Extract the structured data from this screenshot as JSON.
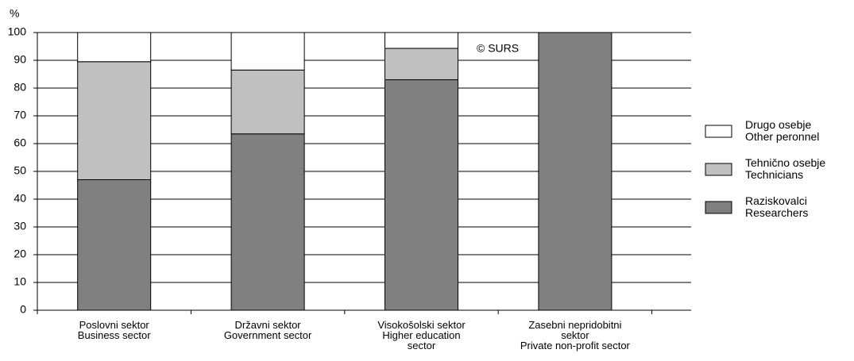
{
  "chart_data": {
    "type": "stacked_bar",
    "y_axis_label": "%",
    "annotation": "© SURS",
    "categories": [
      "Poslovni sektor\nBusiness sector",
      "Državni sektor\nGovernment sector",
      "Visokošolski sektor\nHigher education\nsector",
      "Zasebni nepridobitni\nsektor\nPrivate non-profit sector"
    ],
    "series": [
      {
        "name": "Raziskovalci\nResearchers",
        "color": "#808080",
        "values": [
          47,
          63.5,
          83,
          100
        ]
      },
      {
        "name": "Tehnično osebje\nTechnicians",
        "color": "#c0c0c0",
        "values": [
          42.5,
          23,
          11.3,
          0
        ]
      },
      {
        "name": "Drugo osebje\nOther peronnel",
        "color": "#ffffff",
        "values": [
          10.5,
          13.5,
          5.7,
          0
        ]
      }
    ],
    "ylim": [
      0,
      100
    ],
    "yticks": [
      0,
      10,
      20,
      30,
      40,
      50,
      60,
      70,
      80,
      90,
      100
    ],
    "grid": true,
    "legend": "right"
  }
}
